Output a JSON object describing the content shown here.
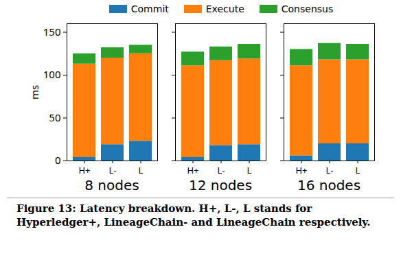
{
  "chart_data": [
    {
      "type": "bar",
      "stacked": true,
      "xlabel": "8 nodes",
      "ylabel": "ms",
      "legend": "top",
      "categories": [
        "H+",
        "L-",
        "L"
      ],
      "ylim": [
        0,
        160
      ],
      "yticks": [
        0,
        50,
        100,
        150
      ],
      "series": [
        {
          "name": "Commit",
          "color": "#1f77b4",
          "values": [
            4,
            19,
            23
          ]
        },
        {
          "name": "Execute",
          "color": "#ff7f0e",
          "values": [
            109,
            101,
            102
          ]
        },
        {
          "name": "Consensus",
          "color": "#2ca02c",
          "values": [
            12,
            12,
            10
          ]
        }
      ]
    },
    {
      "type": "bar",
      "stacked": true,
      "xlabel": "12 nodes",
      "categories": [
        "H+",
        "L-",
        "L"
      ],
      "ylim": [
        0,
        160
      ],
      "yticks": [
        0,
        50,
        100,
        150
      ],
      "series": [
        {
          "name": "Commit",
          "color": "#1f77b4",
          "values": [
            4,
            18,
            19
          ]
        },
        {
          "name": "Execute",
          "color": "#ff7f0e",
          "values": [
            107,
            99,
            100
          ]
        },
        {
          "name": "Consensus",
          "color": "#2ca02c",
          "values": [
            16,
            16,
            17
          ]
        }
      ]
    },
    {
      "type": "bar",
      "stacked": true,
      "xlabel": "16 nodes",
      "categories": [
        "H+",
        "L-",
        "L"
      ],
      "ylim": [
        0,
        160
      ],
      "yticks": [
        0,
        50,
        100,
        150
      ],
      "series": [
        {
          "name": "Commit",
          "color": "#1f77b4",
          "values": [
            6,
            20,
            20
          ]
        },
        {
          "name": "Execute",
          "color": "#ff7f0e",
          "values": [
            105,
            98,
            98
          ]
        },
        {
          "name": "Consensus",
          "color": "#2ca02c",
          "values": [
            19,
            19,
            18
          ]
        }
      ]
    }
  ],
  "caption": "Figure 13: Latency breakdown. H+, L-, L stands for Hyperledger+, LineageChain- and LineageChain respectively."
}
